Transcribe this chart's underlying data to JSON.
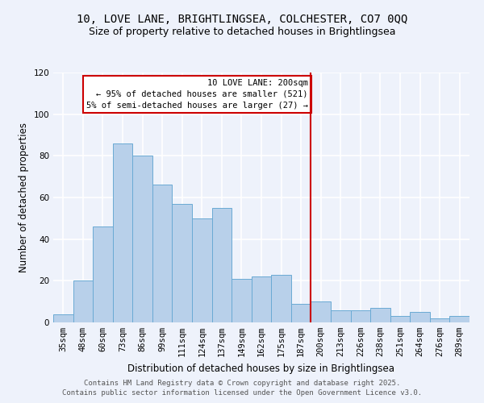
{
  "title": "10, LOVE LANE, BRIGHTLINGSEA, COLCHESTER, CO7 0QQ",
  "subtitle": "Size of property relative to detached houses in Brightlingsea",
  "xlabel": "Distribution of detached houses by size in Brightlingsea",
  "ylabel": "Number of detached properties",
  "bar_labels": [
    "35sqm",
    "48sqm",
    "60sqm",
    "73sqm",
    "86sqm",
    "99sqm",
    "111sqm",
    "124sqm",
    "137sqm",
    "149sqm",
    "162sqm",
    "175sqm",
    "187sqm",
    "200sqm",
    "213sqm",
    "226sqm",
    "238sqm",
    "251sqm",
    "264sqm",
    "276sqm",
    "289sqm"
  ],
  "bar_values": [
    4,
    20,
    46,
    86,
    80,
    66,
    57,
    50,
    55,
    21,
    22,
    23,
    9,
    10,
    6,
    6,
    7,
    3,
    5,
    2,
    3
  ],
  "bar_color": "#b8d0ea",
  "bar_edge_color": "#6aaad4",
  "ylim": [
    0,
    120
  ],
  "yticks": [
    0,
    20,
    40,
    60,
    80,
    100,
    120
  ],
  "vline_color": "#cc0000",
  "annotation_title": "10 LOVE LANE: 200sqm",
  "annotation_line1": "← 95% of detached houses are smaller (521)",
  "annotation_line2": "5% of semi-detached houses are larger (27) →",
  "annotation_box_color": "#cc0000",
  "footer_line1": "Contains HM Land Registry data © Crown copyright and database right 2025.",
  "footer_line2": "Contains public sector information licensed under the Open Government Licence v3.0.",
  "background_color": "#eef2fb",
  "grid_color": "#ffffff",
  "title_fontsize": 10,
  "subtitle_fontsize": 9,
  "axis_label_fontsize": 8.5,
  "tick_fontsize": 7.5,
  "annotation_fontsize": 7.5,
  "footer_fontsize": 6.5
}
